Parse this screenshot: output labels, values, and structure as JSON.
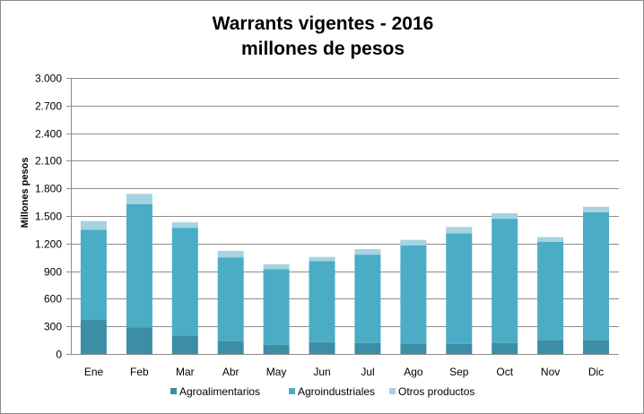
{
  "chart_data": {
    "type": "bar",
    "stacked": true,
    "title_line1": "Warrants vigentes - 2016",
    "title_line2": "millones de pesos",
    "ylabel": "Millones pesos",
    "ylim": [
      0,
      3000
    ],
    "yticks": [
      0,
      300,
      600,
      900,
      1200,
      1500,
      1800,
      2100,
      2400,
      2700,
      3000
    ],
    "ytick_labels": [
      "0",
      "300",
      "600",
      "900",
      "1.200",
      "1.500",
      "1.800",
      "2.100",
      "2.400",
      "2.700",
      "3.000"
    ],
    "grid": true,
    "legend_position": "bottom",
    "categories": [
      "Ene",
      "Feb",
      "Mar",
      "Abr",
      "May",
      "Jun",
      "Jul",
      "Ago",
      "Sep",
      "Oct",
      "Nov",
      "Dic"
    ],
    "series": [
      {
        "name": "Agroalimentarios",
        "color": "#3b8ea5",
        "values": [
          370,
          290,
          200,
          140,
          100,
          130,
          120,
          110,
          110,
          120,
          150,
          150
        ]
      },
      {
        "name": "Agroindustriales",
        "color": "#4bacc6",
        "values": [
          980,
          1340,
          1170,
          910,
          820,
          880,
          960,
          1070,
          1200,
          1350,
          1070,
          1390
        ]
      },
      {
        "name": "Otros productos",
        "color": "#a5d3e1",
        "values": [
          95,
          110,
          60,
          70,
          55,
          45,
          60,
          60,
          70,
          60,
          50,
          60
        ]
      }
    ]
  }
}
